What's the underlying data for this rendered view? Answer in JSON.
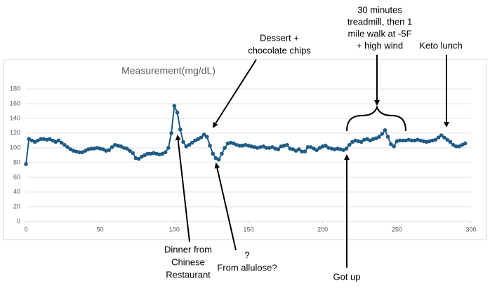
{
  "chart_data": {
    "type": "line",
    "title": "Measurement(mg/dL)",
    "x": [
      0,
      2,
      4,
      6,
      8,
      10,
      12,
      14,
      16,
      18,
      20,
      22,
      24,
      26,
      28,
      30,
      32,
      34,
      36,
      38,
      40,
      42,
      44,
      46,
      48,
      50,
      52,
      54,
      56,
      58,
      60,
      62,
      64,
      66,
      68,
      70,
      72,
      74,
      76,
      78,
      80,
      82,
      84,
      86,
      88,
      90,
      92,
      94,
      96,
      98,
      100,
      102,
      104,
      106,
      108,
      110,
      112,
      114,
      116,
      118,
      120,
      122,
      124,
      126,
      128,
      130,
      132,
      134,
      136,
      138,
      140,
      142,
      144,
      146,
      148,
      150,
      152,
      154,
      156,
      158,
      160,
      162,
      164,
      166,
      168,
      170,
      172,
      174,
      176,
      178,
      180,
      182,
      184,
      186,
      188,
      190,
      192,
      194,
      196,
      198,
      200,
      202,
      204,
      206,
      208,
      210,
      212,
      214,
      216,
      218,
      220,
      222,
      224,
      226,
      228,
      230,
      232,
      234,
      236,
      238,
      240,
      242,
      244,
      246,
      248,
      250,
      252,
      254,
      256,
      258,
      260,
      262,
      264,
      266,
      268,
      270,
      272,
      274,
      276,
      278,
      280,
      282,
      284,
      286,
      288,
      290,
      292,
      294,
      296
    ],
    "series": [
      {
        "name": "Measurement(mg/dL)",
        "color": "#1e5b85",
        "values": [
          78,
          112,
          110,
          108,
          110,
          112,
          112,
          111,
          112,
          110,
          108,
          110,
          107,
          104,
          101,
          98,
          96,
          95,
          94,
          94,
          96,
          98,
          99,
          99,
          100,
          99,
          98,
          96,
          97,
          101,
          104,
          103,
          102,
          100,
          99,
          96,
          93,
          86,
          85,
          88,
          90,
          92,
          92,
          93,
          92,
          91,
          92,
          94,
          100,
          120,
          157,
          148,
          125,
          108,
          102,
          104,
          107,
          110,
          112,
          114,
          118,
          115,
          103,
          92,
          86,
          84,
          92,
          100,
          106,
          107,
          106,
          104,
          103,
          103,
          104,
          103,
          102,
          101,
          100,
          101,
          102,
          100,
          100,
          101,
          99,
          98,
          102,
          103,
          104,
          99,
          98,
          96,
          98,
          95,
          95,
          101,
          101,
          99,
          97,
          100,
          102,
          103,
          100,
          99,
          98,
          99,
          98,
          97,
          99,
          104,
          108,
          110,
          109,
          108,
          111,
          112,
          110,
          112,
          113,
          115,
          119,
          124,
          115,
          105,
          102,
          109,
          110,
          110,
          110,
          111,
          110,
          110,
          111,
          110,
          109,
          108,
          109,
          110,
          111,
          114,
          117,
          114,
          111,
          108,
          104,
          102,
          102,
          104,
          106
        ]
      }
    ],
    "xlim": [
      0,
      300
    ],
    "xticks": [
      0,
      50,
      100,
      150,
      200,
      250,
      300
    ],
    "ylim": [
      0,
      180
    ],
    "yticks": [
      0,
      20,
      40,
      60,
      80,
      100,
      120,
      140,
      160,
      180
    ],
    "grid": true,
    "annotations": [
      {
        "lines": [
          "Dessert +",
          "chocolate chips"
        ]
      },
      {
        "lines": [
          "30 minutes",
          "treadmill, then 1",
          "mile walk at -5F",
          "+ high wind"
        ]
      },
      {
        "lines": [
          "Keto lunch"
        ]
      },
      {
        "lines": [
          "Dinner from",
          "Chinese",
          "Restaurant"
        ]
      },
      {
        "lines": [
          "?",
          "From allulose?"
        ]
      },
      {
        "lines": [
          "Got up"
        ]
      }
    ]
  }
}
